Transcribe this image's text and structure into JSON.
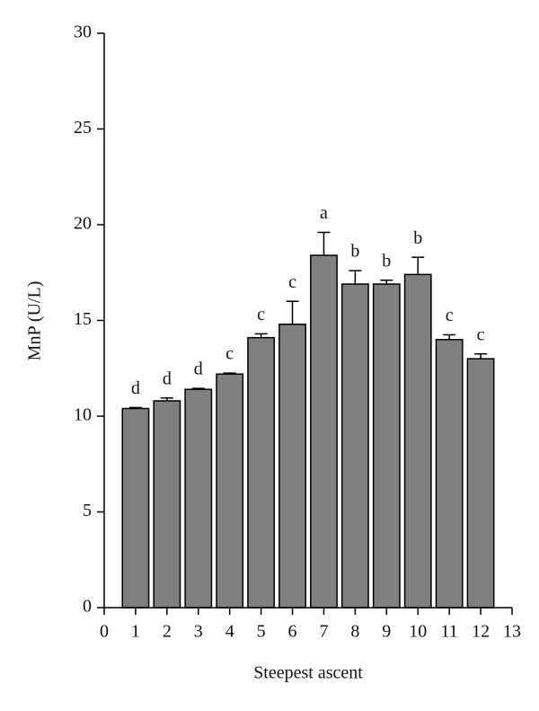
{
  "chart_data": {
    "type": "bar",
    "x_label": "Steepest ascent",
    "y_label": "MnP (U/L)",
    "x": [
      1,
      2,
      3,
      4,
      5,
      6,
      7,
      8,
      9,
      10,
      11,
      12
    ],
    "values": [
      10.4,
      10.8,
      11.4,
      12.2,
      14.1,
      14.8,
      18.4,
      16.9,
      16.9,
      17.4,
      14.0,
      13.0
    ],
    "errors": [
      0.05,
      0.15,
      0.05,
      0.05,
      0.2,
      1.2,
      1.2,
      0.7,
      0.2,
      0.9,
      0.25,
      0.25
    ],
    "group_letters": [
      "d",
      "d",
      "d",
      "c",
      "c",
      "c",
      "a",
      "b",
      "b",
      "b",
      "c",
      "c"
    ],
    "color": "#808080",
    "xlim": [
      0,
      13
    ],
    "xticks": [
      0,
      1,
      2,
      3,
      4,
      5,
      6,
      7,
      8,
      9,
      10,
      11,
      12,
      13
    ],
    "ylim": [
      0,
      30
    ],
    "yticks": [
      0,
      5,
      10,
      15,
      20,
      25,
      30
    ]
  }
}
